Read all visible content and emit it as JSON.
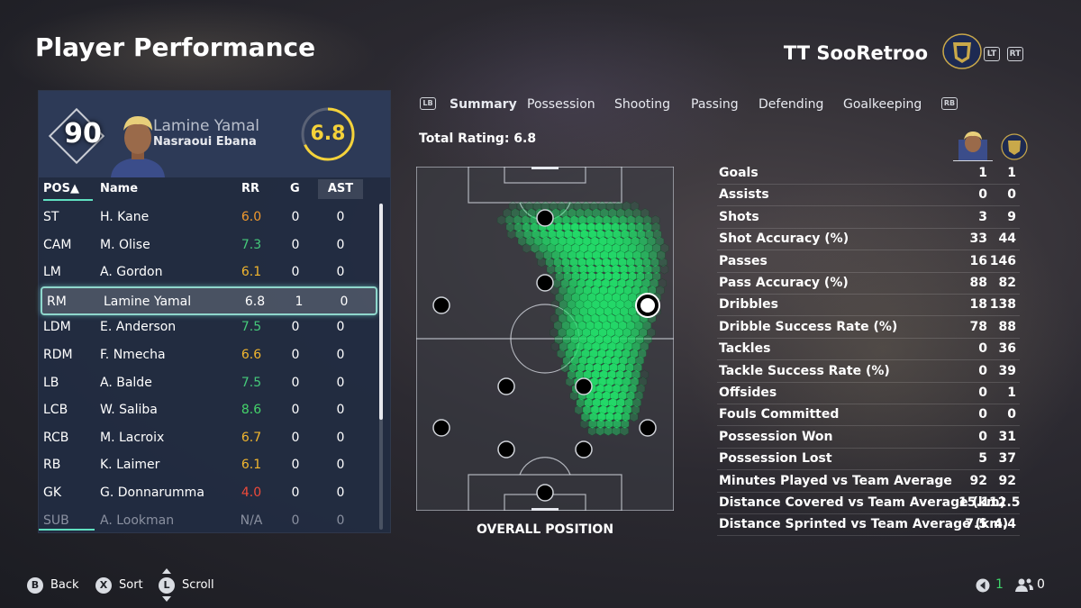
{
  "header": {
    "title": "Player Performance",
    "team_name": "TT SooRetroo",
    "lt_label": "LT",
    "rt_label": "RT"
  },
  "player_card": {
    "overall": "90",
    "name": "Lamine Yamal",
    "club": "Nasraoui Ebana",
    "rating": "6.8"
  },
  "table": {
    "headers": {
      "pos": "POS▲",
      "name": "Name",
      "rr": "RR",
      "g": "G",
      "ast": "AST"
    },
    "rows": [
      {
        "pos": "ST",
        "name": "H. Kane",
        "rr": "6.0",
        "g": "0",
        "ast": "0",
        "rr_color": "#f29a2e"
      },
      {
        "pos": "CAM",
        "name": "M. Olise",
        "rr": "7.3",
        "g": "0",
        "ast": "0",
        "rr_color": "#45c97a"
      },
      {
        "pos": "LM",
        "name": "A. Gordon",
        "rr": "6.1",
        "g": "0",
        "ast": "0",
        "rr_color": "#f2b62e"
      },
      {
        "pos": "RM",
        "name": "Lamine Yamal",
        "rr": "6.8",
        "g": "1",
        "ast": "0",
        "rr_color": "#ffffff"
      },
      {
        "pos": "LDM",
        "name": "E. Anderson",
        "rr": "7.5",
        "g": "0",
        "ast": "0",
        "rr_color": "#45c97a"
      },
      {
        "pos": "RDM",
        "name": "F. Nmecha",
        "rr": "6.6",
        "g": "0",
        "ast": "0",
        "rr_color": "#f2b62e"
      },
      {
        "pos": "LB",
        "name": "A. Balde",
        "rr": "7.5",
        "g": "0",
        "ast": "0",
        "rr_color": "#45c97a"
      },
      {
        "pos": "LCB",
        "name": "W. Saliba",
        "rr": "8.6",
        "g": "0",
        "ast": "0",
        "rr_color": "#45d46a"
      },
      {
        "pos": "RCB",
        "name": "M. Lacroix",
        "rr": "6.7",
        "g": "0",
        "ast": "0",
        "rr_color": "#f2b62e"
      },
      {
        "pos": "RB",
        "name": "K. Laimer",
        "rr": "6.1",
        "g": "0",
        "ast": "0",
        "rr_color": "#f2b62e"
      },
      {
        "pos": "GK",
        "name": "G. Donnarumma",
        "rr": "4.0",
        "g": "0",
        "ast": "0",
        "rr_color": "#ef4a3a"
      },
      {
        "pos": "SUB",
        "name": "A. Lookman",
        "rr": "N/A",
        "g": "0",
        "ast": "0",
        "rr_color": "#8a90a0"
      }
    ]
  },
  "tabs": {
    "lb": "LB",
    "rb": "RB",
    "items": [
      "Summary",
      "Possession",
      "Shooting",
      "Passing",
      "Defending",
      "Goalkeeping"
    ]
  },
  "summary": {
    "total_rating": "Total Rating: 6.8",
    "pitch_label": "OVERALL POSITION"
  },
  "stats": [
    {
      "label": "Goals",
      "v1": "1",
      "v2": "1"
    },
    {
      "label": "Assists",
      "v1": "0",
      "v2": "0"
    },
    {
      "label": "Shots",
      "v1": "3",
      "v2": "9"
    },
    {
      "label": "Shot Accuracy (%)",
      "v1": "33",
      "v2": "44"
    },
    {
      "label": "Passes",
      "v1": "16",
      "v2": "146"
    },
    {
      "label": "Pass Accuracy (%)",
      "v1": "88",
      "v2": "82"
    },
    {
      "label": "Dribbles",
      "v1": "18",
      "v2": "138"
    },
    {
      "label": "Dribble Success Rate (%)",
      "v1": "78",
      "v2": "88"
    },
    {
      "label": "Tackles",
      "v1": "0",
      "v2": "36"
    },
    {
      "label": "Tackle Success Rate (%)",
      "v1": "0",
      "v2": "39"
    },
    {
      "label": "Offsides",
      "v1": "0",
      "v2": "1"
    },
    {
      "label": "Fouls Committed",
      "v1": "0",
      "v2": "0"
    },
    {
      "label": "Possession Won",
      "v1": "0",
      "v2": "31"
    },
    {
      "label": "Possession Lost",
      "v1": "5",
      "v2": "37"
    },
    {
      "label": "Minutes Played vs Team Average",
      "v1": "92",
      "v2": "92"
    },
    {
      "label": "Distance Covered vs Team Average (km)",
      "v1": "15.1",
      "v2": "12.5"
    },
    {
      "label": "Distance Sprinted vs Team Average (km)",
      "v1": "7.5",
      "v2": "4.4"
    }
  ],
  "footer": {
    "back_btn": "B",
    "back": "Back",
    "sort_btn": "X",
    "sort": "Sort",
    "scroll_btn": "L",
    "scroll": "Scroll",
    "left_count": "1",
    "right_count": "0"
  },
  "colors": {
    "accent": "#5fe0c0",
    "rating": "#f4d23a",
    "heatmap": "#22e06a"
  }
}
